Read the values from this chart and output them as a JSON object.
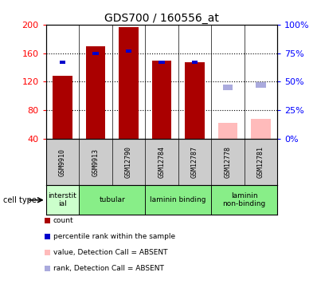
{
  "title": "GDS700 / 160556_at",
  "samples": [
    "GSM9910",
    "GSM9913",
    "GSM12790",
    "GSM12784",
    "GSM12787",
    "GSM12778",
    "GSM12781"
  ],
  "count_values": [
    128,
    170,
    197,
    150,
    148,
    null,
    null
  ],
  "rank_values": [
    67,
    75,
    77,
    67,
    67,
    null,
    null
  ],
  "count_absent": [
    null,
    null,
    null,
    null,
    null,
    62,
    68
  ],
  "rank_absent": [
    null,
    null,
    null,
    null,
    null,
    45,
    47
  ],
  "ylim_left": [
    40,
    200
  ],
  "ylim_right": [
    0,
    100
  ],
  "yticks_left": [
    40,
    80,
    120,
    160,
    200
  ],
  "yticks_right": [
    0,
    25,
    50,
    75,
    100
  ],
  "ytick_labels_right": [
    "0%",
    "25%",
    "50%",
    "75%",
    "100%"
  ],
  "bar_width": 0.6,
  "count_color": "#aa0000",
  "rank_color": "#0000cc",
  "count_absent_color": "#ffbbbb",
  "rank_absent_color": "#aaaadd",
  "cell_type_interstitial_color": "#ccffcc",
  "cell_type_other_color": "#88ee88",
  "bg_color": "#ffffff",
  "sample_label_bg": "#cccccc",
  "cell_type_label": "cell type"
}
